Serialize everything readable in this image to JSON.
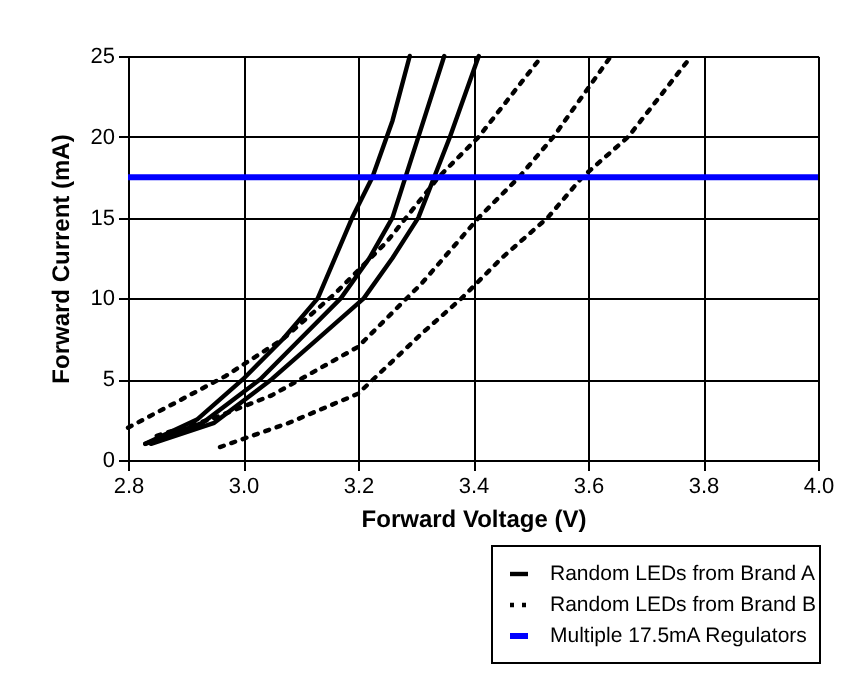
{
  "chart_data": {
    "type": "line",
    "xlabel": "Forward Voltage (V)",
    "ylabel": "Forward Current (mA)",
    "xlim": [
      2.8,
      4.0
    ],
    "xticks": [
      {
        "value": 2.8,
        "label": "2.8"
      },
      {
        "value": 3.0,
        "label": "3.0"
      },
      {
        "value": 3.2,
        "label": "3.2"
      },
      {
        "value": 3.4,
        "label": "3.4"
      },
      {
        "value": 3.6,
        "label": "3.6"
      },
      {
        "value": 3.8,
        "label": "3.8"
      },
      {
        "value": 4.0,
        "label": "4.0"
      }
    ],
    "ylim": [
      0,
      25
    ],
    "yticks": [
      0,
      5,
      10,
      15,
      20,
      25
    ],
    "grid": true,
    "legend": "bottom right",
    "series": [
      {
        "name": "Random LEDs from Brand A",
        "color": "#000000",
        "line_style": "solid",
        "x": [
          2.83,
          2.92,
          3.0,
          3.07,
          3.13,
          3.19,
          3.225,
          3.26,
          3.29
        ],
        "values": [
          1.0,
          2.5,
          5.0,
          7.5,
          10.0,
          15.0,
          17.5,
          21.0,
          25.0
        ]
      },
      {
        "color": "#000000",
        "line_style": "solid",
        "x": [
          2.83,
          2.93,
          3.03,
          3.1,
          3.17,
          3.22,
          3.26,
          3.305,
          3.35
        ],
        "values": [
          1.0,
          2.3,
          5.0,
          7.5,
          10.0,
          12.5,
          15.0,
          20.0,
          25.0
        ]
      },
      {
        "color": "#000000",
        "line_style": "solid",
        "x": [
          2.84,
          2.95,
          3.05,
          3.13,
          3.21,
          3.26,
          3.305,
          3.36,
          3.41
        ],
        "values": [
          1.0,
          2.3,
          5.0,
          7.5,
          10.0,
          12.5,
          15.0,
          20.0,
          25.0
        ]
      },
      {
        "name": "Random LEDs from Brand B",
        "color": "#000000",
        "line_style": "dotted",
        "x": [
          2.8,
          2.88,
          2.97,
          3.07,
          3.16,
          3.25,
          3.34,
          3.41,
          3.52
        ],
        "values": [
          2.0,
          3.5,
          5.2,
          7.5,
          10.3,
          13.5,
          17.5,
          20.0,
          25.0
        ]
      },
      {
        "color": "#000000",
        "line_style": "dotted",
        "x": [
          2.85,
          2.95,
          3.05,
          3.2,
          3.31,
          3.41,
          3.48,
          3.54,
          3.64
        ],
        "values": [
          1.5,
          2.6,
          4.0,
          7.0,
          10.9,
          15.0,
          17.5,
          20.0,
          25.0
        ]
      },
      {
        "color": "#000000",
        "line_style": "dotted",
        "x": [
          2.96,
          3.08,
          3.2,
          3.31,
          3.38,
          3.45,
          3.53,
          3.59,
          3.67,
          3.78
        ],
        "values": [
          0.8,
          2.3,
          4.1,
          7.8,
          10.0,
          12.5,
          15.0,
          17.5,
          20.0,
          25.0
        ]
      }
    ],
    "ref_lines": [
      {
        "axis": "y",
        "value": 17.5,
        "label": "Multiple 17.5mA Regulators",
        "color": "#0000ff",
        "line_style": "solid"
      }
    ]
  }
}
